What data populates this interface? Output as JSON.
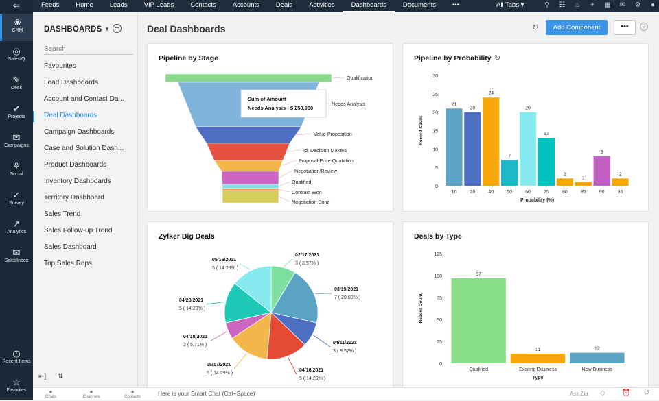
{
  "topnav": {
    "items": [
      "Feeds",
      "Home",
      "Leads",
      "VIP Leads",
      "Contacts",
      "Accounts",
      "Deals",
      "Activities",
      "Dashboards",
      "Documents",
      "•••"
    ],
    "active_index": 8,
    "all_tabs_label": "All Tabs",
    "icons": [
      "search-icon",
      "gamepad-icon",
      "bell-icon",
      "plus-icon",
      "calendar-icon",
      "mail-icon",
      "gear-icon",
      "avatar"
    ]
  },
  "leftnav": {
    "items": [
      {
        "label": "CRM",
        "icon": "❀"
      },
      {
        "label": "SalesIQ",
        "icon": "◎"
      },
      {
        "label": "Desk",
        "icon": "✎"
      },
      {
        "label": "Projects",
        "icon": "✔"
      },
      {
        "label": "Campaigns",
        "icon": "✉"
      },
      {
        "label": "Social",
        "icon": "⚘"
      },
      {
        "label": "Survey",
        "icon": "✓"
      },
      {
        "label": "Analytics",
        "icon": "↗"
      },
      {
        "label": "SalesInbox",
        "icon": "✉"
      }
    ],
    "recent_items_label": "Recent Items",
    "favorites_label": "Favorites"
  },
  "sidepanel": {
    "title": "DASHBOARDS",
    "search_placeholder": "Search",
    "items": [
      "Favourites",
      "Lead Dashboards",
      "Account and Contact Da...",
      "Deal Dashboards",
      "Campaign Dashboards",
      "Case and Solution Dash...",
      "Product Dashboards",
      "Inventory Dashboards",
      "Territory Dashboard",
      "Sales Trend",
      "Sales Follow-up Trend",
      "Sales Dashboard",
      "Top Sales Reps"
    ],
    "active_index": 3
  },
  "header": {
    "title": "Deal Dashboards",
    "add_component_label": "Add Component",
    "more_label": "•••"
  },
  "bottombar": {
    "chats_label": "Chats",
    "channels_label": "Channels",
    "contacts_label": "Contacts",
    "smart_chat_placeholder": "Here is your Smart Chat (Ctrl+Space)",
    "ask_zia_label": "Ask Zia"
  },
  "chart_data": [
    {
      "id": "pipeline-stage",
      "type": "funnel",
      "title": "Pipeline by Stage",
      "stages": [
        {
          "label": "Qualification",
          "color": "#8ad98a"
        },
        {
          "label": "Needs Analysis",
          "color": "#7fb3d9"
        },
        {
          "label": "Value Proposition",
          "color": "#4e6fc4"
        },
        {
          "label": "Id. Decision Makers",
          "color": "#e55240"
        },
        {
          "label": "Proposal/Price Quotation",
          "color": "#f2b64a"
        },
        {
          "label": "Negotiation/Review",
          "color": "#cc66c2"
        },
        {
          "label": "Qualified",
          "color": "#7fe0e6"
        },
        {
          "label": "Contract Won",
          "color": "#f7a145"
        },
        {
          "label": "Negotiation Done",
          "color": "#d6cc5a"
        }
      ],
      "tooltip": {
        "line1": "Sum of Amount",
        "line2": "Needs Analysis : $ 250,000"
      }
    },
    {
      "id": "pipeline-probability",
      "type": "bar",
      "title": "Pipeline by Probability",
      "xlabel": "Probability (%)",
      "ylabel": "Record Count",
      "ylim": [
        0,
        30
      ],
      "yticks": [
        0,
        5,
        10,
        15,
        20,
        25,
        30
      ],
      "categories": [
        "10",
        "20",
        "40",
        "50",
        "60",
        "75",
        "80",
        "85",
        "90",
        "95"
      ],
      "values": [
        21,
        20,
        24,
        7,
        20,
        13,
        2,
        1,
        8,
        2
      ],
      "colors": [
        "#5ba3c4",
        "#4e6fc4",
        "#f7a70a",
        "#1fb8c8",
        "#86eaf0",
        "#00c3c0",
        "#f7a70a",
        "#f7a70a",
        "#c25fc4",
        "#f7a70a"
      ]
    },
    {
      "id": "zylker-big-deals",
      "type": "pie",
      "title": "Zylker Big Deals",
      "slices": [
        {
          "label": "02/17/2021",
          "value_label": "3 ( 8.57% )",
          "percent": 8.57,
          "color": "#7ee0a0"
        },
        {
          "label": "03/19/2021",
          "value_label": "7 ( 20.00% )",
          "percent": 20.0,
          "color": "#5ba3c4"
        },
        {
          "label": "04/11/2021",
          "value_label": "3 ( 8.57% )",
          "percent": 8.57,
          "color": "#4e6fc4"
        },
        {
          "label": "04/16/2021",
          "value_label": "5 ( 14.29% )",
          "percent": 14.29,
          "color": "#e54a35"
        },
        {
          "label": "05/17/2021",
          "value_label": "5 ( 14.29% )",
          "percent": 14.29,
          "color": "#f2b64a"
        },
        {
          "label": "04/18/2021",
          "value_label": "2 ( 5.71% )",
          "percent": 5.71,
          "color": "#cc66c2"
        },
        {
          "label": "04/23/2021",
          "value_label": "5 ( 14.29% )",
          "percent": 14.29,
          "color": "#1ec9b8"
        },
        {
          "label": "05/16/2021",
          "value_label": "5 ( 14.29% )",
          "percent": 14.29,
          "color": "#86eaf0"
        }
      ]
    },
    {
      "id": "deals-by-type",
      "type": "bar",
      "title": "Deals by Type",
      "xlabel": "Type",
      "ylabel": "Record Count",
      "ylim": [
        0,
        125
      ],
      "yticks": [
        0,
        25,
        50,
        75,
        100,
        125
      ],
      "categories": [
        "Qualified",
        "Existing Business",
        "New Business"
      ],
      "values": [
        97,
        11,
        12
      ],
      "colors": [
        "#8ae08a",
        "#f7a70a",
        "#5ba3c4"
      ]
    }
  ]
}
